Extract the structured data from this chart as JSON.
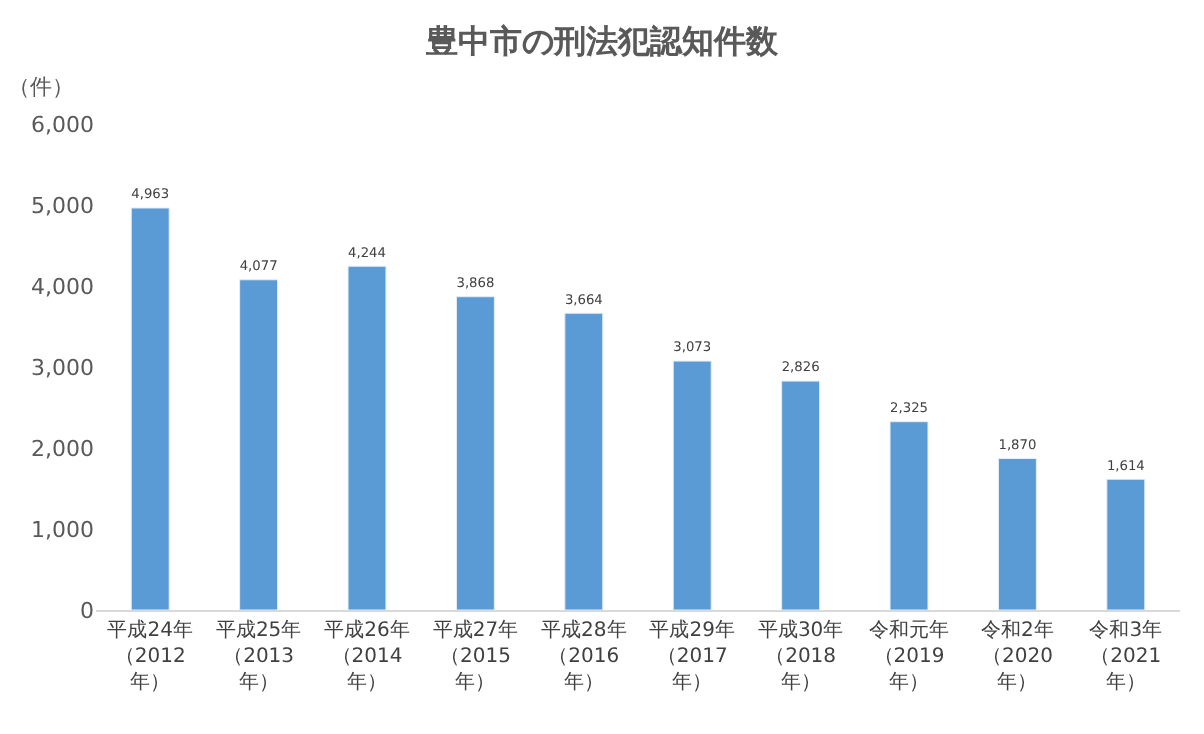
{
  "chart_data": {
    "type": "bar",
    "title": "豊中市の刑法犯認知件数",
    "ylabel": "（件）",
    "categories": [
      "平成24年（2012年）",
      "平成25年（2013年）",
      "平成26年（2014年）",
      "平成27年（2015年）",
      "平成28年（2016年）",
      "平成29年（2017年）",
      "平成30年（2018年）",
      "令和元年（2019年）",
      "令和2年（2020年）",
      "令和3年（2021年）"
    ],
    "values": [
      4963,
      4077,
      4244,
      3868,
      3664,
      3073,
      2826,
      2325,
      1870,
      1614
    ],
    "color": "#5b9bd5",
    "ylim": [
      0,
      6000
    ],
    "yticks": [
      {
        "value": 0,
        "label": "0"
      },
      {
        "value": 1000,
        "label": "1,000"
      },
      {
        "value": 2000,
        "label": "2,000"
      },
      {
        "value": 3000,
        "label": "3,000"
      },
      {
        "value": 4000,
        "label": "4,000"
      },
      {
        "value": 5000,
        "label": "5,000"
      },
      {
        "value": 6000,
        "label": "6,000"
      }
    ],
    "value_labels": [
      "4,963",
      "4,077",
      "4,244",
      "3,868",
      "3,664",
      "3,073",
      "2,826",
      "2,325",
      "1,870",
      "1,614"
    ],
    "grid": false,
    "legend": false
  }
}
